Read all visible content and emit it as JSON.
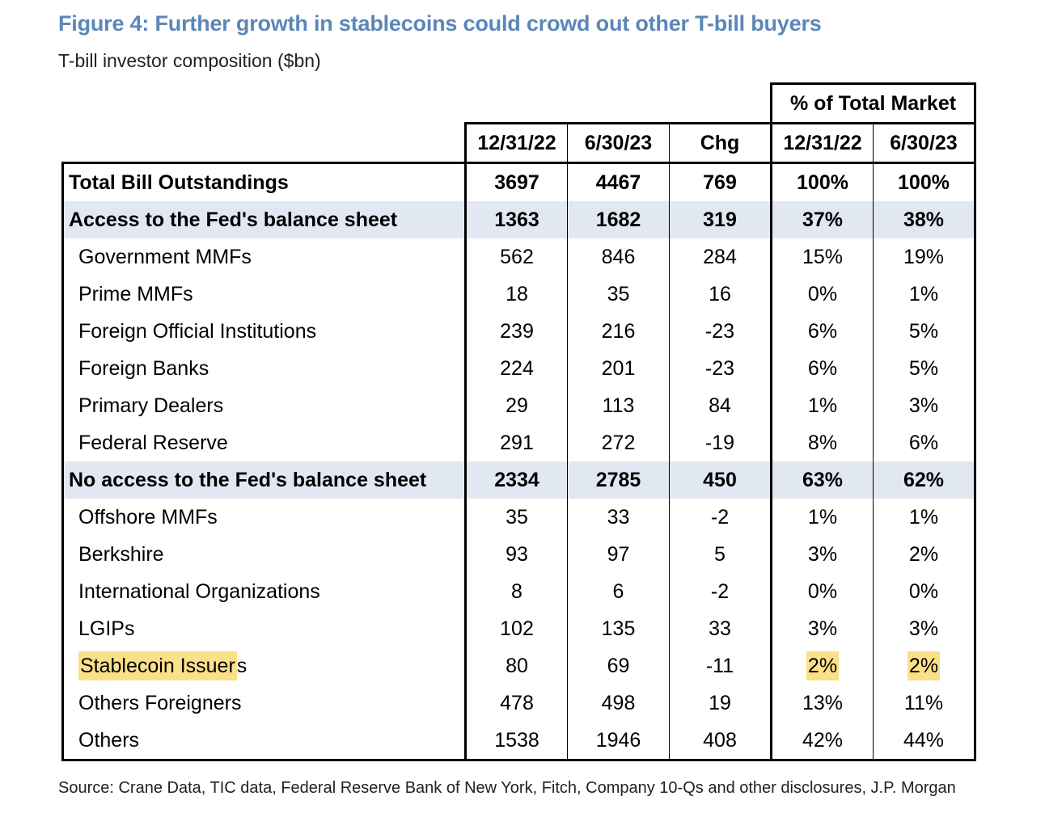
{
  "title": "Figure 4: Further growth in stablecoins could crowd out other T-bill buyers",
  "subtitle": "T-bill investor composition ($bn)",
  "header": {
    "pct_group": "% of Total Market",
    "columns": [
      "12/31/22",
      "6/30/23",
      "Chg",
      "12/31/22",
      "6/30/23"
    ]
  },
  "rows": [
    {
      "label": "Total Bill Outstandings",
      "values": [
        "3697",
        "4467",
        "769",
        "100%",
        "100%"
      ]
    },
    {
      "label": "Access to the Fed's balance sheet",
      "values": [
        "1363",
        "1682",
        "319",
        "37%",
        "38%"
      ]
    },
    {
      "label": "Government MMFs",
      "values": [
        "562",
        "846",
        "284",
        "15%",
        "19%"
      ]
    },
    {
      "label": "Prime MMFs",
      "values": [
        "18",
        "35",
        "16",
        "0%",
        "1%"
      ]
    },
    {
      "label": "Foreign Official Institutions",
      "values": [
        "239",
        "216",
        "-23",
        "6%",
        "5%"
      ]
    },
    {
      "label": "Foreign Banks",
      "values": [
        "224",
        "201",
        "-23",
        "6%",
        "5%"
      ]
    },
    {
      "label": "Primary Dealers",
      "values": [
        "29",
        "113",
        "84",
        "1%",
        "3%"
      ]
    },
    {
      "label": "Federal Reserve",
      "values": [
        "291",
        "272",
        "-19",
        "8%",
        "6%"
      ]
    },
    {
      "label": "No access to the Fed's balance sheet",
      "values": [
        "2334",
        "2785",
        "450",
        "63%",
        "62%"
      ]
    },
    {
      "label": "Offshore MMFs",
      "values": [
        "35",
        "33",
        "-2",
        "1%",
        "1%"
      ]
    },
    {
      "label": "Berkshire",
      "values": [
        "93",
        "97",
        "5",
        "3%",
        "2%"
      ]
    },
    {
      "label": "International Organizations",
      "values": [
        "8",
        "6",
        "-2",
        "0%",
        "0%"
      ]
    },
    {
      "label": "LGIPs",
      "values": [
        "102",
        "135",
        "33",
        "3%",
        "3%"
      ]
    },
    {
      "label_part1": "Stablecoin Issuer",
      "label_part2": "s",
      "values": [
        "80",
        "69",
        "-11",
        "2%",
        "2%"
      ]
    },
    {
      "label": "Others Foreigners",
      "values": [
        "478",
        "498",
        "19",
        "13%",
        "11%"
      ]
    },
    {
      "label": "Others",
      "values": [
        "1538",
        "1946",
        "408",
        "42%",
        "44%"
      ]
    }
  ],
  "source": "Source: Crane Data, TIC data, Federal Reserve Bank of New York, Fitch, Company 10-Qs and other disclosures, J.P. Morgan",
  "colors": {
    "title": "#5b86b8",
    "shade": "#e2e8f1",
    "highlight": "#fbe08a"
  }
}
